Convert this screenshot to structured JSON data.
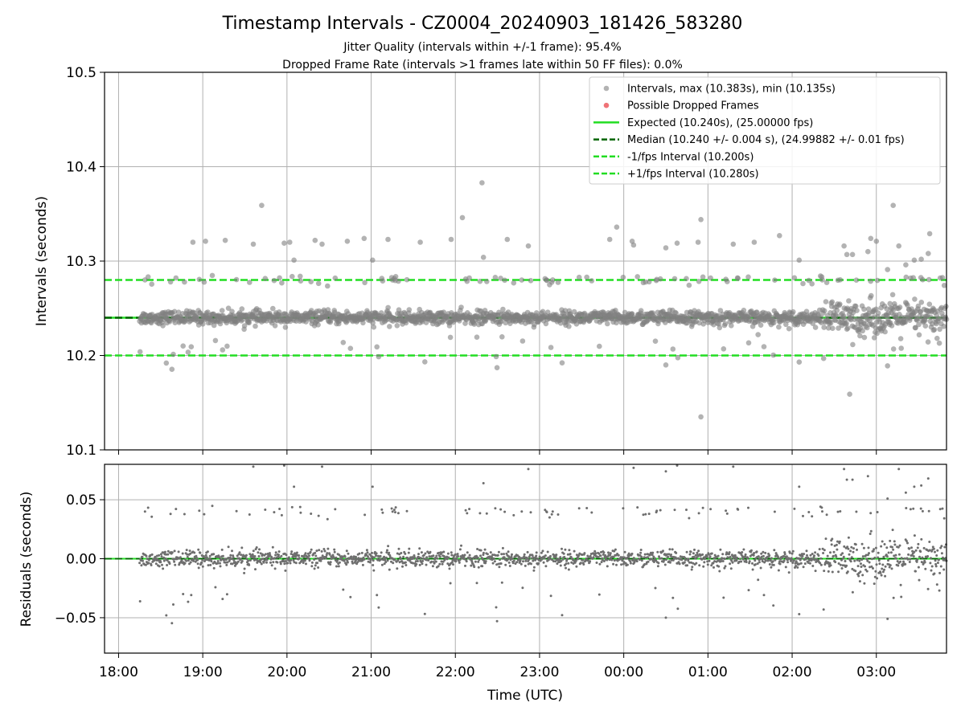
{
  "header": {
    "title": "Timestamp Intervals - CZ0004_20240903_181426_583280",
    "subtitle_1": "Jitter Quality (intervals within +/-1 frame): 95.4%",
    "subtitle_2": "Dropped Frame Rate (intervals >1 frames late within 50 FF files): 0.0%"
  },
  "colors": {
    "points": "#808080",
    "dropped": "#e8383d",
    "expected": "#22dd22",
    "median": "#006400",
    "grid": "#b0b0b0"
  },
  "chart_data": [
    {
      "type": "scatter",
      "title": "Timestamp Intervals - CZ0004_20240903_181426_583280",
      "ylabel": "Intervals (seconds)",
      "xlabel": "",
      "ylim": [
        10.1,
        10.5
      ],
      "yticks": [
        "10.1",
        "10.2",
        "10.3",
        "10.4",
        "10.5"
      ],
      "grid": true,
      "legend_position": "top-right",
      "legend": [
        "Intervals, max (10.383s), min (10.135s)",
        "Possible Dropped Frames",
        "Expected (10.240s), (25.00000 fps)",
        "Median (10.240 +/- 0.004 s), (24.99882 +/- 0.01 fps)",
        "-1/fps Interval (10.200s)",
        "+1/fps Interval (10.280s)"
      ],
      "expected": 10.24,
      "median": 10.24,
      "lower_interval": 10.2,
      "upper_interval": 10.28,
      "max": 10.383,
      "min": 10.135,
      "outliers": [
        {
          "t": "18:34",
          "y": 10.192
        },
        {
          "t": "18:53",
          "y": 10.32
        },
        {
          "t": "19:02",
          "y": 10.321
        },
        {
          "t": "19:16",
          "y": 10.322
        },
        {
          "t": "19:36",
          "y": 10.318
        },
        {
          "t": "19:42",
          "y": 10.359
        },
        {
          "t": "19:58",
          "y": 10.319
        },
        {
          "t": "20:02",
          "y": 10.32
        },
        {
          "t": "20:05",
          "y": 10.301
        },
        {
          "t": "20:20",
          "y": 10.322
        },
        {
          "t": "20:25",
          "y": 10.318
        },
        {
          "t": "20:43",
          "y": 10.321
        },
        {
          "t": "20:55",
          "y": 10.324
        },
        {
          "t": "21:01",
          "y": 10.301
        },
        {
          "t": "21:12",
          "y": 10.323
        },
        {
          "t": "21:35",
          "y": 10.32
        },
        {
          "t": "21:57",
          "y": 10.323
        },
        {
          "t": "22:05",
          "y": 10.346
        },
        {
          "t": "22:19",
          "y": 10.383
        },
        {
          "t": "22:20",
          "y": 10.304
        },
        {
          "t": "22:37",
          "y": 10.323
        },
        {
          "t": "22:52",
          "y": 10.316
        },
        {
          "t": "23:50",
          "y": 10.323
        },
        {
          "t": "23:55",
          "y": 10.336
        },
        {
          "t": "00:06",
          "y": 10.321
        },
        {
          "t": "00:07",
          "y": 10.317
        },
        {
          "t": "00:30",
          "y": 10.314
        },
        {
          "t": "00:30",
          "y": 10.19
        },
        {
          "t": "00:38",
          "y": 10.319
        },
        {
          "t": "00:53",
          "y": 10.32
        },
        {
          "t": "00:55",
          "y": 10.344
        },
        {
          "t": "00:55",
          "y": 10.135
        },
        {
          "t": "01:18",
          "y": 10.318
        },
        {
          "t": "01:33",
          "y": 10.32
        },
        {
          "t": "01:51",
          "y": 10.327
        },
        {
          "t": "02:05",
          "y": 10.301
        },
        {
          "t": "02:05",
          "y": 10.193
        },
        {
          "t": "02:37",
          "y": 10.316
        },
        {
          "t": "02:39",
          "y": 10.307
        },
        {
          "t": "02:41",
          "y": 10.159
        },
        {
          "t": "02:43",
          "y": 10.307
        },
        {
          "t": "02:54",
          "y": 10.31
        },
        {
          "t": "02:56",
          "y": 10.324
        },
        {
          "t": "03:00",
          "y": 10.321
        },
        {
          "t": "03:08",
          "y": 10.291
        },
        {
          "t": "03:08",
          "y": 10.189
        },
        {
          "t": "03:12",
          "y": 10.359
        },
        {
          "t": "03:16",
          "y": 10.316
        },
        {
          "t": "03:21",
          "y": 10.296
        },
        {
          "t": "03:27",
          "y": 10.301
        },
        {
          "t": "03:32",
          "y": 10.302
        },
        {
          "t": "03:37",
          "y": 10.308
        },
        {
          "t": "03:38",
          "y": 10.329
        }
      ]
    },
    {
      "type": "scatter",
      "title": "",
      "ylabel": "Residuals (seconds)",
      "xlabel": "Time (UTC)",
      "ylim": [
        -0.08,
        0.08
      ],
      "yticks": [
        "−0.05",
        "0.00",
        "0.05"
      ],
      "xticks": [
        "18:00",
        "19:00",
        "20:00",
        "21:00",
        "22:00",
        "23:00",
        "00:00",
        "01:00",
        "02:00",
        "03:00"
      ],
      "x_range": [
        "17:50",
        "03:50"
      ],
      "data_start": "18:15",
      "data_end": "03:50",
      "grid": true,
      "zero_line": 0.0
    }
  ]
}
